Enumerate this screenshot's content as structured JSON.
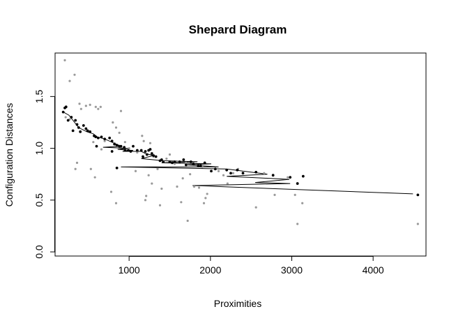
{
  "chart_data": {
    "type": "scatter",
    "title": "Shepard Diagram",
    "xlabel": "Proximities",
    "ylabel": "Configuration Distances",
    "xlim": [
      90,
      4650
    ],
    "ylim": [
      -0.04,
      1.92
    ],
    "x_ticks": [
      1000,
      2000,
      3000,
      4000
    ],
    "y_ticks": [
      0.0,
      0.5,
      1.0,
      1.5
    ],
    "x_tick_labels": [
      "1000",
      "2000",
      "3000",
      "4000"
    ],
    "y_tick_labels": [
      "0.0",
      "0.5",
      "1.0",
      "1.5"
    ],
    "grid": false,
    "colors": {
      "points": "#000000",
      "observed": "#999999",
      "step_line": "#000000"
    },
    "series": [
      {
        "kind": "observed",
        "points": [
          [
            210,
            1.85
          ],
          [
            270,
            1.65
          ],
          [
            330,
            1.71
          ],
          [
            220,
            1.3
          ],
          [
            270,
            1.28
          ],
          [
            340,
            0.8
          ],
          [
            360,
            0.86
          ],
          [
            390,
            1.43
          ],
          [
            410,
            1.38
          ],
          [
            470,
            1.41
          ],
          [
            520,
            1.42
          ],
          [
            530,
            0.8
          ],
          [
            560,
            1.06
          ],
          [
            580,
            0.72
          ],
          [
            590,
            1.4
          ],
          [
            620,
            1.38
          ],
          [
            650,
            1.4
          ],
          [
            660,
            0.99
          ],
          [
            700,
            1.07
          ],
          [
            760,
            1.1
          ],
          [
            780,
            0.58
          ],
          [
            800,
            1.25
          ],
          [
            820,
            1.05
          ],
          [
            840,
            0.47
          ],
          [
            840,
            1.2
          ],
          [
            880,
            1.15
          ],
          [
            900,
            1.36
          ],
          [
            950,
            1.06
          ],
          [
            1000,
            1.0
          ],
          [
            1080,
            0.78
          ],
          [
            1100,
            0.96
          ],
          [
            1160,
            1.12
          ],
          [
            1180,
            1.07
          ],
          [
            1200,
            0.5
          ],
          [
            1210,
            0.54
          ],
          [
            1240,
            0.74
          ],
          [
            1260,
            1.05
          ],
          [
            1280,
            0.66
          ],
          [
            1300,
            0.92
          ],
          [
            1350,
            0.8
          ],
          [
            1380,
            0.45
          ],
          [
            1400,
            0.61
          ],
          [
            1460,
            0.9
          ],
          [
            1500,
            0.94
          ],
          [
            1560,
            0.85
          ],
          [
            1590,
            0.63
          ],
          [
            1610,
            0.87
          ],
          [
            1640,
            0.48
          ],
          [
            1660,
            0.71
          ],
          [
            1700,
            0.86
          ],
          [
            1720,
            0.3
          ],
          [
            1750,
            0.75
          ],
          [
            1800,
            0.63
          ],
          [
            1860,
            0.62
          ],
          [
            1900,
            0.82
          ],
          [
            1920,
            0.47
          ],
          [
            1940,
            0.52
          ],
          [
            1960,
            0.56
          ],
          [
            2100,
            0.78
          ],
          [
            2160,
            0.74
          ],
          [
            2210,
            0.66
          ],
          [
            2280,
            0.76
          ],
          [
            2340,
            0.8
          ],
          [
            2400,
            0.77
          ],
          [
            2560,
            0.43
          ],
          [
            2660,
            0.76
          ],
          [
            2790,
            0.55
          ],
          [
            2950,
            0.72
          ],
          [
            3040,
            0.55
          ],
          [
            3070,
            0.27
          ],
          [
            3130,
            0.47
          ],
          [
            4550,
            0.27
          ]
        ]
      },
      {
        "kind": "fitted",
        "points": [
          [
            190,
            1.35
          ],
          [
            210,
            1.39
          ],
          [
            225,
            1.4
          ],
          [
            250,
            1.27
          ],
          [
            290,
            1.3
          ],
          [
            310,
            1.17
          ],
          [
            340,
            1.27
          ],
          [
            360,
            1.23
          ],
          [
            380,
            1.2
          ],
          [
            400,
            1.16
          ],
          [
            440,
            1.22
          ],
          [
            470,
            1.19
          ],
          [
            490,
            1.17
          ],
          [
            520,
            1.16
          ],
          [
            570,
            1.12
          ],
          [
            590,
            1.11
          ],
          [
            600,
            1.02
          ],
          [
            620,
            1.1
          ],
          [
            660,
            1.11
          ],
          [
            700,
            1.09
          ],
          [
            760,
            1.1
          ],
          [
            790,
            1.07
          ],
          [
            790,
            0.97
          ],
          [
            820,
            1.04
          ],
          [
            850,
            1.03
          ],
          [
            850,
            0.81
          ],
          [
            880,
            1.02
          ],
          [
            900,
            1.02
          ],
          [
            940,
            1.01
          ],
          [
            950,
            0.98
          ],
          [
            990,
            0.98
          ],
          [
            1020,
            0.97
          ],
          [
            1050,
            1.02
          ],
          [
            1100,
            0.98
          ],
          [
            1150,
            0.98
          ],
          [
            1170,
            0.92
          ],
          [
            1200,
            0.97
          ],
          [
            1220,
            0.94
          ],
          [
            1240,
            0.98
          ],
          [
            1260,
            0.99
          ],
          [
            1280,
            0.95
          ],
          [
            1300,
            0.93
          ],
          [
            1330,
            0.92
          ],
          [
            1380,
            0.88
          ],
          [
            1400,
            0.89
          ],
          [
            1420,
            0.87
          ],
          [
            1500,
            0.87
          ],
          [
            1530,
            0.86
          ],
          [
            1560,
            0.87
          ],
          [
            1620,
            0.87
          ],
          [
            1670,
            0.89
          ],
          [
            1700,
            0.84
          ],
          [
            1760,
            0.87
          ],
          [
            1790,
            0.85
          ],
          [
            1850,
            0.83
          ],
          [
            1880,
            0.83
          ],
          [
            1930,
            0.86
          ],
          [
            2010,
            0.78
          ],
          [
            2060,
            0.8
          ],
          [
            2200,
            0.79
          ],
          [
            2250,
            0.76
          ],
          [
            2330,
            0.79
          ],
          [
            2400,
            0.76
          ],
          [
            2560,
            0.77
          ],
          [
            2770,
            0.74
          ],
          [
            2980,
            0.72
          ],
          [
            3070,
            0.66
          ],
          [
            3140,
            0.73
          ],
          [
            4550,
            0.55
          ]
        ]
      }
    ],
    "step_line": [
      [
        190,
        1.35
      ],
      [
        260,
        1.32
      ],
      [
        300,
        1.28
      ],
      [
        380,
        1.2
      ],
      [
        480,
        1.16
      ],
      [
        560,
        1.14
      ],
      [
        610,
        1.11
      ],
      [
        700,
        1.09
      ],
      [
        900,
        1.02
      ],
      [
        680,
        1.01
      ],
      [
        990,
        1.0
      ],
      [
        860,
        0.99
      ],
      [
        1050,
        0.98
      ],
      [
        920,
        0.97
      ],
      [
        1150,
        0.97
      ],
      [
        1200,
        0.95
      ],
      [
        1300,
        0.93
      ],
      [
        1150,
        0.9
      ],
      [
        1420,
        0.88
      ],
      [
        1840,
        0.87
      ],
      [
        1400,
        0.86
      ],
      [
        2010,
        0.85
      ],
      [
        1700,
        0.84
      ],
      [
        2100,
        0.82
      ],
      [
        900,
        0.82
      ],
      [
        2200,
        0.8
      ],
      [
        2400,
        0.78
      ],
      [
        2700,
        0.75
      ],
      [
        2200,
        0.73
      ],
      [
        2970,
        0.7
      ],
      [
        2550,
        0.67
      ],
      [
        2980,
        0.66
      ],
      [
        1780,
        0.64
      ],
      [
        4490,
        0.56
      ]
    ]
  }
}
